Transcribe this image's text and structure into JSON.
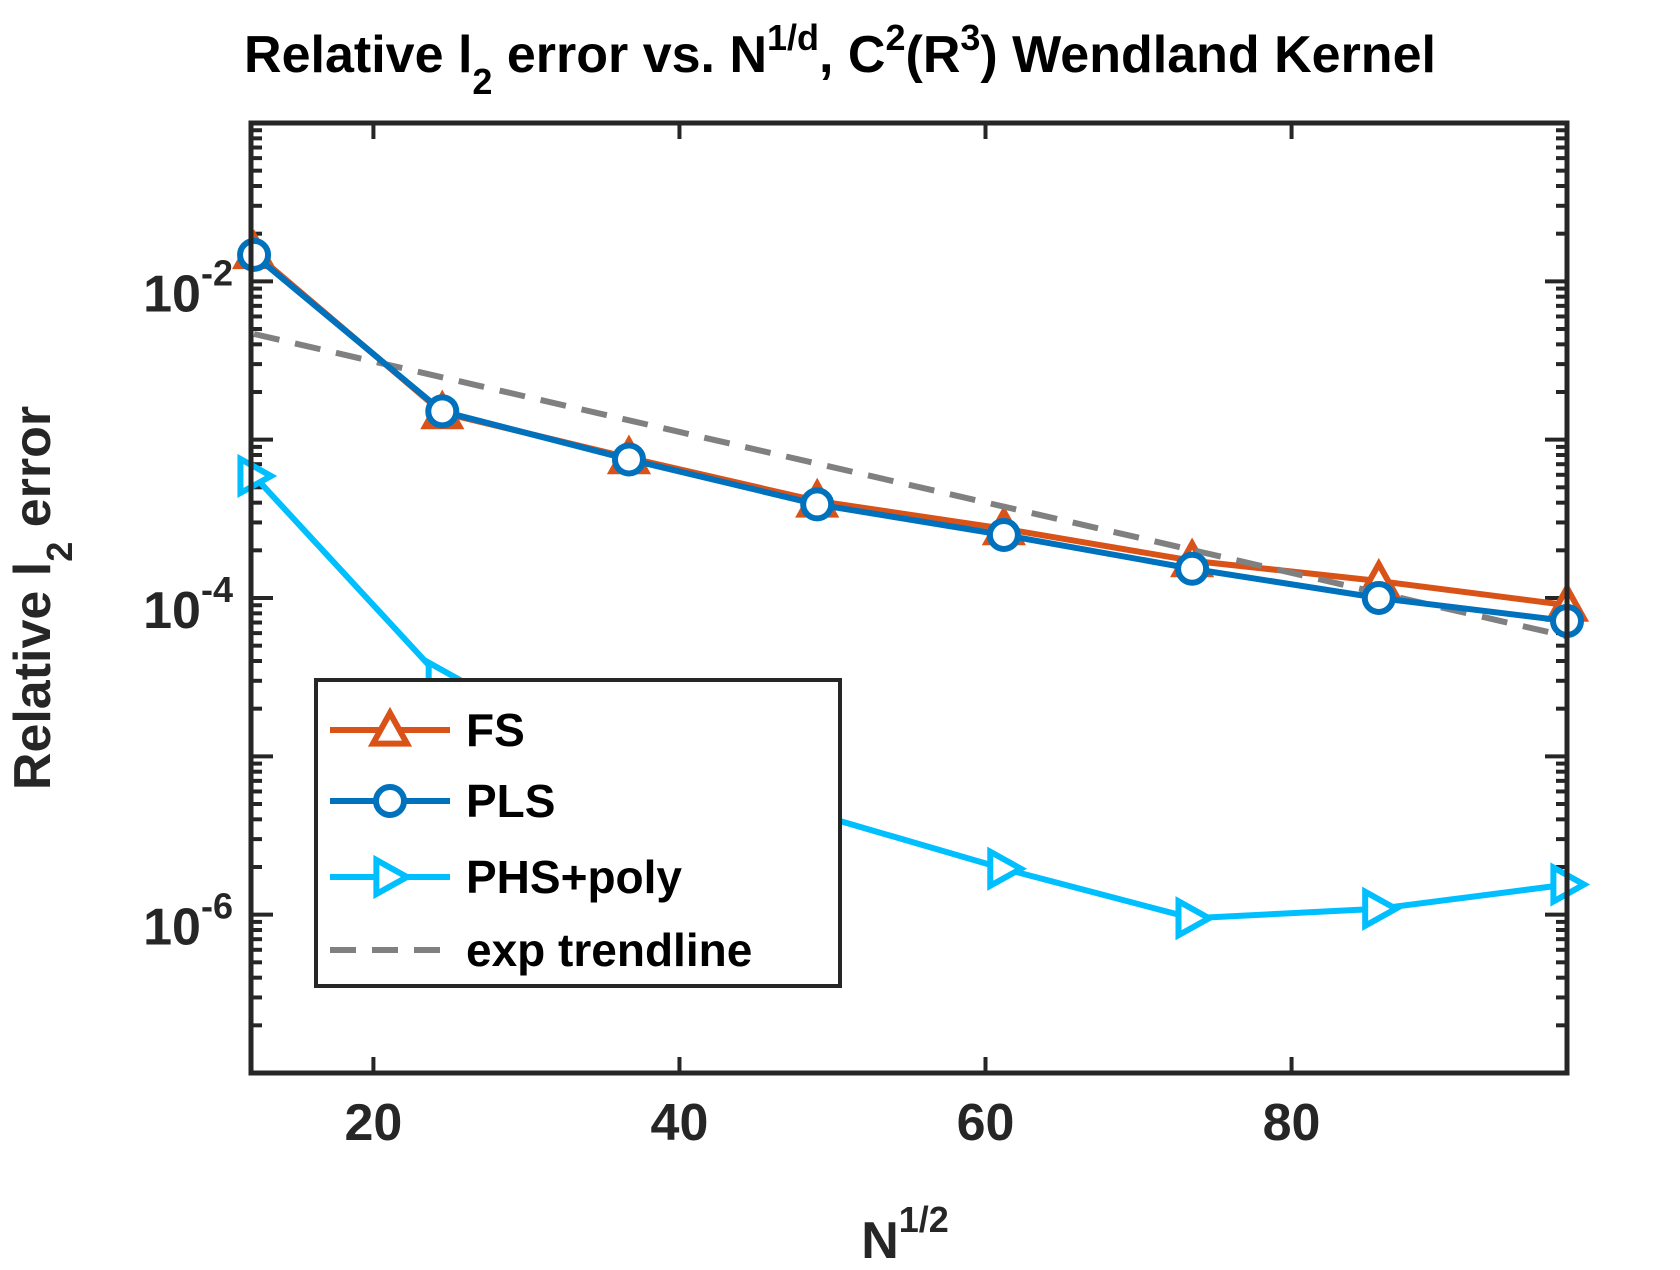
{
  "chart_data": {
    "type": "line",
    "title": {
      "p1": "Relative l",
      "sub1": "2",
      "p2": " error vs. N",
      "sup1": "1/d",
      "p3": ", C",
      "sup2": "2",
      "p4": "(R",
      "sup3": "3",
      "p5": ") Wendland Kernel"
    },
    "xlabel": {
      "base": "N",
      "sup": "1/2"
    },
    "ylabel": {
      "p1": "Relative l",
      "sub": "2",
      "p2": " error"
    },
    "xlim": [
      12,
      98
    ],
    "ylim_log10": [
      -7,
      -1
    ],
    "yscale": "log",
    "xticks": [
      20,
      40,
      60,
      80
    ],
    "xtick_labels": [
      "20",
      "40",
      "60",
      "80"
    ],
    "yticks_log10": [
      -2,
      -4,
      -6
    ],
    "ytick_labels": [
      {
        "base": "10",
        "exp": "-2"
      },
      {
        "base": "10",
        "exp": "-4"
      },
      {
        "base": "10",
        "exp": "-6"
      }
    ],
    "grid": false,
    "legend_position": "bottom-left",
    "series": [
      {
        "name": "FS",
        "color": "#D95319",
        "marker": "triangle-up",
        "x": [
          12.2,
          24.5,
          36.7,
          49.0,
          61.2,
          73.5,
          85.7,
          98.0
        ],
        "y": [
          0.0152,
          0.00148,
          0.00077,
          0.00041,
          0.000274,
          0.000172,
          0.000128,
          9.02e-05
        ]
      },
      {
        "name": "PLS",
        "color": "#0072BD",
        "marker": "circle",
        "x": [
          12.2,
          24.5,
          36.7,
          49.0,
          61.2,
          73.5,
          85.7,
          98.0
        ],
        "y": [
          0.0147,
          0.00151,
          0.00075,
          0.00039,
          0.00025,
          0.000153,
          0.0001,
          7.16e-05
        ]
      },
      {
        "name": "PHS+poly",
        "color": "#00BFFF",
        "marker": "triangle-right",
        "x": [
          12.2,
          24.5,
          36.7,
          49.0,
          61.2,
          73.5,
          85.7,
          98.0
        ],
        "y": [
          0.00059,
          3.05e-05,
          1.16e-05,
          4.3e-06,
          1.95e-06,
          9.5e-07,
          1.09e-06,
          1.55e-06
        ]
      },
      {
        "name": "exp trendline",
        "color": "#808080",
        "marker": "none",
        "dashed": true,
        "x": [
          12.2,
          98.0
        ],
        "y": [
          0.00465,
          5.73e-05
        ]
      }
    ]
  }
}
